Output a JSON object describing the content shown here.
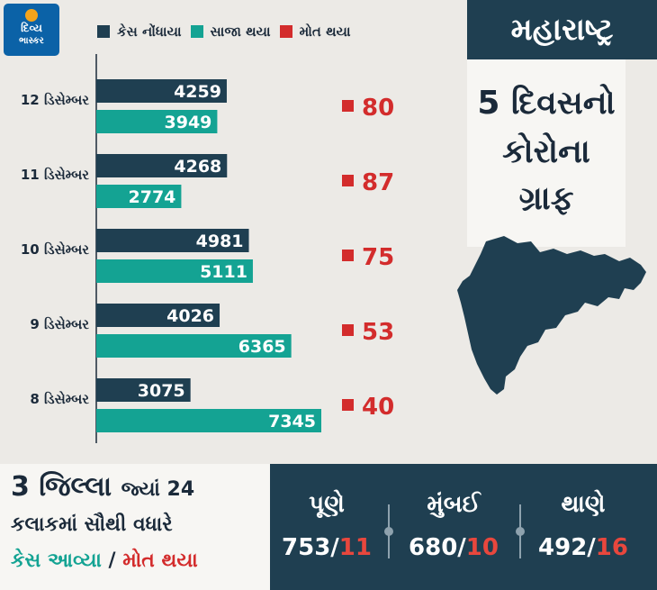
{
  "logo": {
    "line1": "દિવ્ય",
    "line2": "ભાસ્કર"
  },
  "state": {
    "name": "મહારાષ્ટ્ર",
    "graph_lines": [
      "5 દિવસનો",
      "કોરોના",
      "ગ્રાફ"
    ],
    "map_icon": "maharashtra-map-icon"
  },
  "colors": {
    "cases": "#1f3f51",
    "recovered": "#14a393",
    "deaths": "#d32c2c",
    "panel": "#1f3f51"
  },
  "chart_data": {
    "type": "bar",
    "orientation": "horizontal",
    "categories": [
      "12 ડિસેમ્બર",
      "11 ડિસેમ્બર",
      "10 ડિસેમ્બર",
      "9 ડિસેમ્બર",
      "8 ડિસેમ્બર"
    ],
    "series": [
      {
        "name": "કેસ નોંધાયા",
        "values": [
          4259,
          4268,
          4981,
          4026,
          3075
        ]
      },
      {
        "name": "સાજા થયા",
        "values": [
          3949,
          2774,
          5111,
          6365,
          7345
        ]
      },
      {
        "name": "મોત થયા",
        "values": [
          80,
          87,
          75,
          53,
          40
        ]
      }
    ],
    "xlim": [
      0,
      8000
    ],
    "legend": "top",
    "grid": false
  },
  "districts": {
    "headline_part1": "3 જિલ્લા",
    "headline_part2": "જ્યાં 24",
    "line2": "કલાકમાં સૌથી વધારે",
    "label_cases": "કેસ આવ્યા",
    "label_sep": "/",
    "label_deaths": "મોત થયા",
    "items": [
      {
        "name": "પૂણે",
        "cases": "753",
        "sep": "/",
        "deaths": "11"
      },
      {
        "name": "મુંબઈ",
        "cases": "680",
        "sep": "/",
        "deaths": "10"
      },
      {
        "name": "થાણે",
        "cases": "492",
        "sep": "/",
        "deaths": "16"
      }
    ]
  }
}
